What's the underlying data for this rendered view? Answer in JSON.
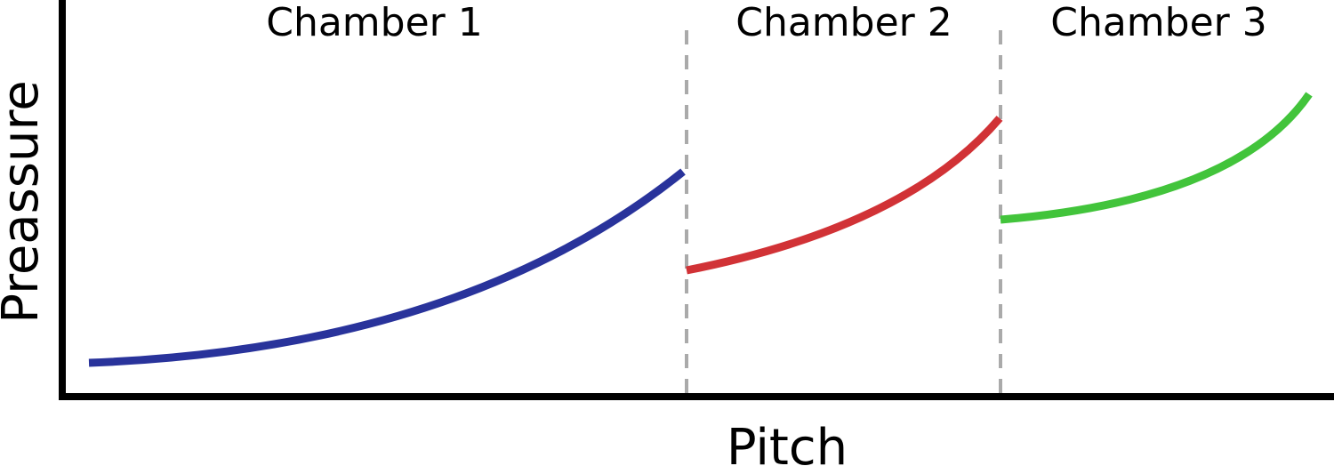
{
  "axes": {
    "x_label": "Pitch",
    "y_label": "Preassure"
  },
  "chambers": [
    {
      "label": "Chamber 1",
      "color": "#29339b"
    },
    {
      "label": "Chamber 2",
      "color": "#d13236"
    },
    {
      "label": "Chamber 3",
      "color": "#42c43b"
    }
  ],
  "divider_color": "#aaaaaa",
  "axis_color": "#000000"
}
